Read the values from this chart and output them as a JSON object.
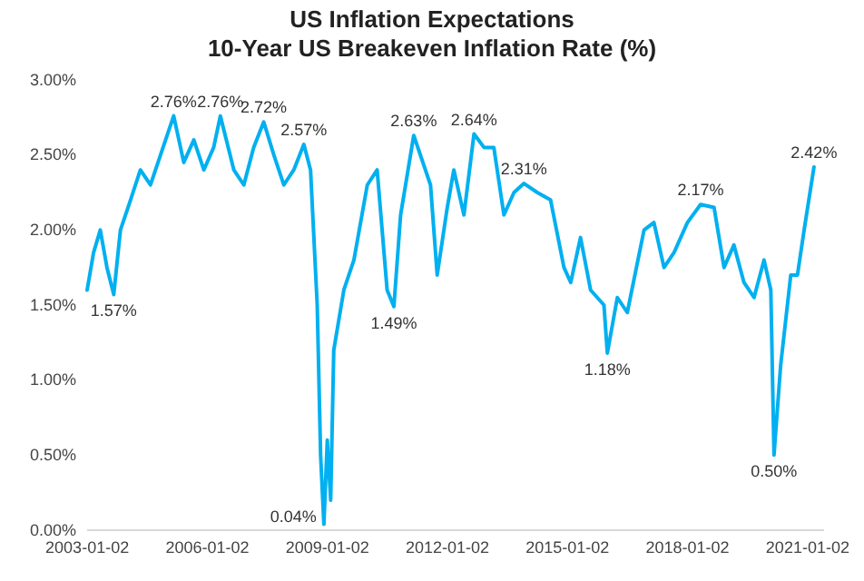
{
  "chart_data": {
    "type": "line",
    "title": "US Inflation Expectations",
    "subtitle": "10-Year US Breakeven Inflation Rate (%)",
    "x": [
      "2003-01",
      "2003-03",
      "2003-05",
      "2003-07",
      "2003-09",
      "2003-11",
      "2004-02",
      "2004-05",
      "2004-08",
      "2004-11",
      "2005-03",
      "2005-06",
      "2005-09",
      "2005-12",
      "2006-03",
      "2006-05",
      "2006-09",
      "2006-12",
      "2007-03",
      "2007-06",
      "2007-09",
      "2007-12",
      "2008-03",
      "2008-06",
      "2008-08",
      "2008-10",
      "2008-11",
      "2008-12",
      "2009-01",
      "2009-02",
      "2009-03",
      "2009-06",
      "2009-09",
      "2010-01",
      "2010-04",
      "2010-07",
      "2010-09",
      "2010-11",
      "2011-03",
      "2011-08",
      "2011-10",
      "2012-01",
      "2012-03",
      "2012-06",
      "2012-09",
      "2012-12",
      "2013-03",
      "2013-06",
      "2013-09",
      "2013-12",
      "2014-04",
      "2014-08",
      "2014-12",
      "2015-02",
      "2015-05",
      "2015-08",
      "2015-12",
      "2016-01",
      "2016-04",
      "2016-07",
      "2016-12",
      "2017-03",
      "2017-06",
      "2017-09",
      "2018-01",
      "2018-05",
      "2018-09",
      "2018-12",
      "2019-03",
      "2019-06",
      "2019-09",
      "2019-12",
      "2020-02",
      "2020-03",
      "2020-05",
      "2020-08",
      "2020-10",
      "2020-12",
      "2021-03"
    ],
    "series": [
      {
        "color": "#00b0f0",
        "values": [
          1.6,
          1.85,
          2.0,
          1.75,
          1.57,
          2.0,
          2.2,
          2.4,
          2.3,
          2.5,
          2.76,
          2.45,
          2.6,
          2.4,
          2.55,
          2.76,
          2.4,
          2.3,
          2.55,
          2.72,
          2.5,
          2.3,
          2.4,
          2.57,
          2.4,
          1.5,
          0.5,
          0.04,
          0.6,
          0.2,
          1.2,
          1.6,
          1.8,
          2.3,
          2.4,
          1.6,
          1.49,
          2.1,
          2.63,
          2.3,
          1.7,
          2.15,
          2.4,
          2.1,
          2.64,
          2.55,
          2.55,
          2.1,
          2.25,
          2.31,
          2.25,
          2.2,
          1.75,
          1.65,
          1.95,
          1.6,
          1.5,
          1.18,
          1.55,
          1.45,
          2.0,
          2.05,
          1.75,
          1.85,
          2.05,
          2.17,
          2.15,
          1.75,
          1.9,
          1.65,
          1.55,
          1.8,
          1.6,
          0.5,
          1.1,
          1.7,
          1.7,
          2.0,
          2.42
        ]
      }
    ],
    "xlim": [
      "2003-01-01",
      "2021-06-01"
    ],
    "xticks": [
      {
        "value": "2003-01-02",
        "label": "2003-01-02"
      },
      {
        "value": "2006-01-02",
        "label": "2006-01-02"
      },
      {
        "value": "2009-01-02",
        "label": "2009-01-02"
      },
      {
        "value": "2012-01-02",
        "label": "2012-01-02"
      },
      {
        "value": "2015-01-02",
        "label": "2015-01-02"
      },
      {
        "value": "2018-01-02",
        "label": "2018-01-02"
      },
      {
        "value": "2021-01-02",
        "label": "2021-01-02"
      }
    ],
    "ylim": [
      0,
      3
    ],
    "yticks": [
      {
        "value": 0,
        "label": "0.00%"
      },
      {
        "value": 0.5,
        "label": "0.50%"
      },
      {
        "value": 1,
        "label": "1.00%"
      },
      {
        "value": 1.5,
        "label": "1.50%"
      },
      {
        "value": 2,
        "label": "2.00%"
      },
      {
        "value": 2.5,
        "label": "2.50%"
      },
      {
        "value": 3,
        "label": "3.00%"
      }
    ],
    "annotations": [
      {
        "text": "1.57%",
        "x": "2003-09",
        "y": 1.57
      },
      {
        "text": "2.76%",
        "x": "2005-03",
        "y": 2.76
      },
      {
        "text": "2.76%",
        "x": "2006-05",
        "y": 2.76
      },
      {
        "text": "2.72%",
        "x": "2007-06",
        "y": 2.72
      },
      {
        "text": "2.57%",
        "x": "2008-06",
        "y": 2.57
      },
      {
        "text": "0.04%",
        "x": "2008-12",
        "y": 0.04
      },
      {
        "text": "1.49%",
        "x": "2010-09",
        "y": 1.49
      },
      {
        "text": "2.63%",
        "x": "2011-03",
        "y": 2.63
      },
      {
        "text": "2.64%",
        "x": "2012-09",
        "y": 2.64
      },
      {
        "text": "2.31%",
        "x": "2013-12",
        "y": 2.31
      },
      {
        "text": "1.18%",
        "x": "2016-01",
        "y": 1.18
      },
      {
        "text": "2.17%",
        "x": "2018-05",
        "y": 2.17
      },
      {
        "text": "0.50%",
        "x": "2020-03",
        "y": 0.5
      },
      {
        "text": "2.42%",
        "x": "2021-03",
        "y": 2.42
      }
    ]
  }
}
